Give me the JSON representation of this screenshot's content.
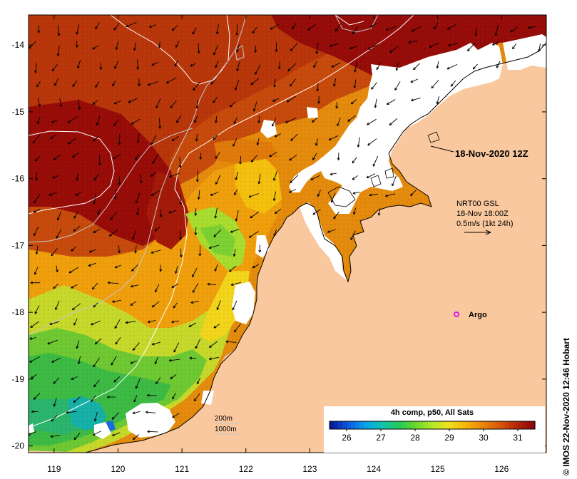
{
  "map": {
    "title": "18-Nov-2020 12Z",
    "current": {
      "line1": "NRT00 GSL",
      "line2": "18-Nov 18:00Z",
      "line3": "0.5m/s (1kt 24h)"
    },
    "argo_label": "Argo",
    "isobaths": {
      "l200": "200m",
      "l1000": "1000m"
    },
    "colorbar": {
      "title": "4h comp, p50, All Sats",
      "ticks": [
        "26",
        "27",
        "28",
        "29",
        "30",
        "31"
      ],
      "min": 25.5,
      "max": 31.5,
      "colors": [
        "#0a1a9a",
        "#0a5ae0",
        "#0aa0e8",
        "#12c4b4",
        "#22c85a",
        "#6ad82a",
        "#b4e82a",
        "#f0e11a",
        "#f5b40a",
        "#ea860a",
        "#d95a0a",
        "#b8260a",
        "#8c0a0a"
      ]
    },
    "axes": {
      "lon_ticks": [
        "119",
        "120",
        "121",
        "122",
        "123",
        "124",
        "125",
        "126"
      ],
      "lat_ticks": [
        "-14",
        "-15",
        "-16",
        "-17",
        "-18",
        "-19",
        "-20"
      ],
      "lon_range": [
        118.6,
        126.7
      ],
      "lat_range": [
        -20.1,
        -13.55
      ]
    },
    "credit": "© IMOS 22-Nov-2020 12:46 Hobart",
    "colors": {
      "land": "#fac89e",
      "cloud": "#ffffff",
      "warm": "#9a0a0a",
      "cool": "#38c23c"
    }
  }
}
